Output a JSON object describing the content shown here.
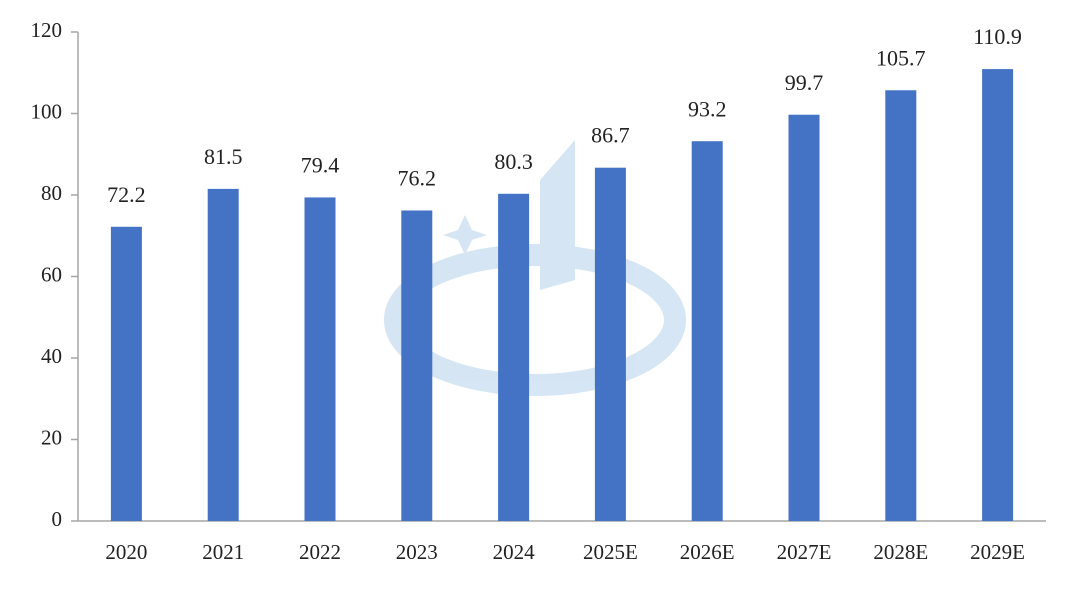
{
  "chart_data": {
    "type": "bar",
    "categories": [
      "2020",
      "2021",
      "2022",
      "2023",
      "2024",
      "2025E",
      "2026E",
      "2027E",
      "2028E",
      "2029E"
    ],
    "values": [
      72.2,
      81.5,
      79.4,
      76.2,
      80.3,
      86.7,
      93.2,
      99.7,
      105.7,
      110.9
    ],
    "color": "#4472c4",
    "ylim": [
      0,
      120
    ],
    "yticks": [
      0,
      20,
      40,
      60,
      80,
      100,
      120
    ],
    "grid": false
  }
}
